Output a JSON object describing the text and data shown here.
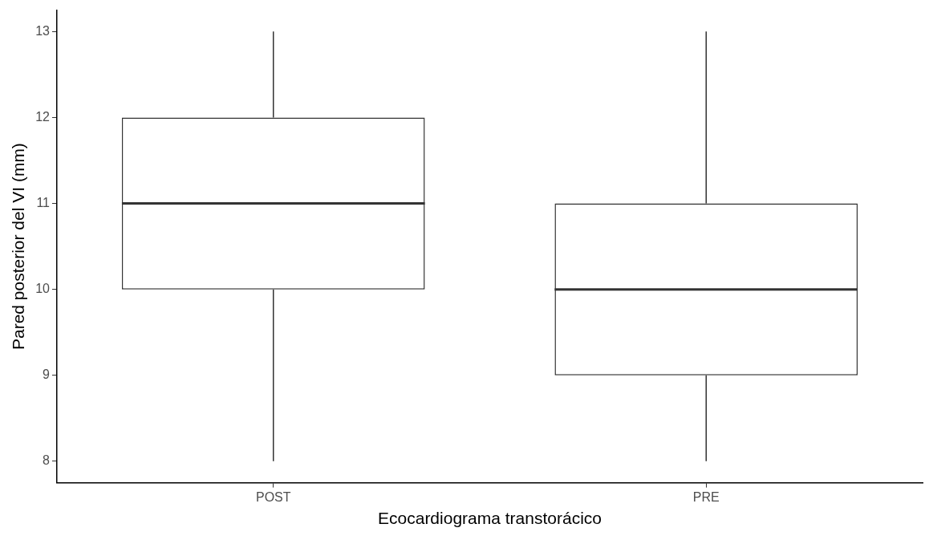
{
  "chart_data": {
    "type": "box",
    "xlabel": "Ecocardiograma transtorácico",
    "ylabel": "Pared posterior del VI (mm)",
    "categories": [
      "POST",
      "PRE"
    ],
    "boxes": [
      {
        "low": 8,
        "q1": 10,
        "median": 11,
        "q3": 12,
        "high": 13
      },
      {
        "low": 8,
        "q1": 9,
        "median": 10,
        "q3": 11,
        "high": 13
      }
    ],
    "ylim": [
      7.75,
      13.25
    ],
    "yticks": [
      8,
      9,
      10,
      11,
      12,
      13
    ],
    "grid": false,
    "legend": false
  }
}
